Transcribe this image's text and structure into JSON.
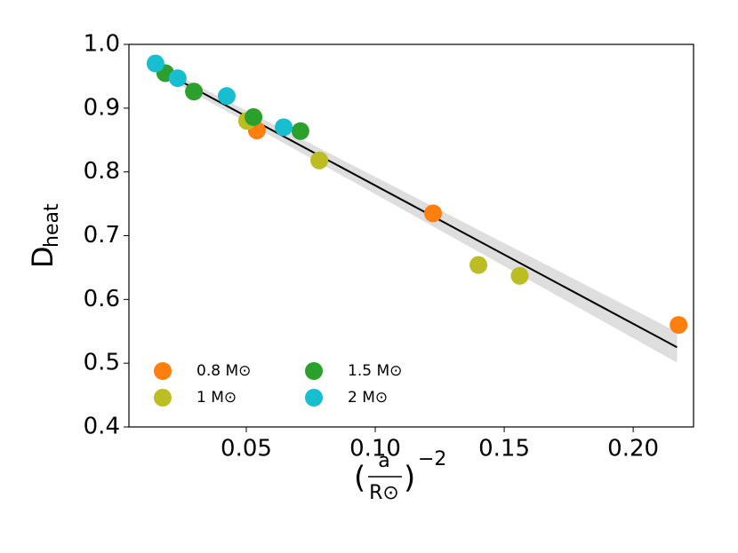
{
  "chart_data": {
    "type": "scatter",
    "x_label": {
      "open": "(",
      "num": "a",
      "den": "R⊙",
      "close": ")",
      "exp": "−2"
    },
    "y_label": {
      "main": "D",
      "sub": "heat"
    },
    "xlim": [
      0.0045,
      0.2234
    ],
    "ylim": [
      0.4,
      1.0
    ],
    "xticks": [
      0.05,
      {
        "value": 0.1,
        "label": "0.10"
      },
      0.15,
      {
        "value": 0.2,
        "label": "0.20"
      }
    ],
    "yticks": [
      0.4,
      0.5,
      0.6,
      0.7,
      0.8,
      0.9,
      {
        "value": 1.0,
        "label": "1.0"
      }
    ],
    "legend": "lower left",
    "series": [
      {
        "name": "0.8 M⊙",
        "color": "#ff7f0e",
        "x": [
          0.0541,
          0.1224,
          0.2176
        ],
        "values": [
          0.865,
          0.735,
          0.56
        ]
      },
      {
        "name": "1 M⊙",
        "color": "#bcbd22",
        "x": [
          0.0503,
          0.0783,
          0.14,
          0.156
        ],
        "values": [
          0.88,
          0.818,
          0.654,
          0.637
        ]
      },
      {
        "name": "1.5 M⊙",
        "color": "#2ca02c",
        "x": [
          0.0186,
          0.0297,
          0.0528,
          0.071
        ],
        "values": [
          0.955,
          0.926,
          0.886,
          0.864
        ]
      },
      {
        "name": "2 M⊙",
        "color": "#17becf",
        "x": [
          0.0148,
          0.0234,
          0.0424,
          0.0645
        ],
        "values": [
          0.97,
          0.947,
          0.919,
          0.87
        ]
      }
    ],
    "fit": {
      "color": "#000000",
      "x": [
        0.015,
        0.217
      ],
      "values": [
        0.963,
        0.525
      ]
    },
    "band": {
      "color": "#d0d0d0",
      "x": [
        0.015,
        0.217
      ],
      "lower": [
        0.957,
        0.501
      ],
      "upper": [
        0.969,
        0.549
      ]
    }
  }
}
